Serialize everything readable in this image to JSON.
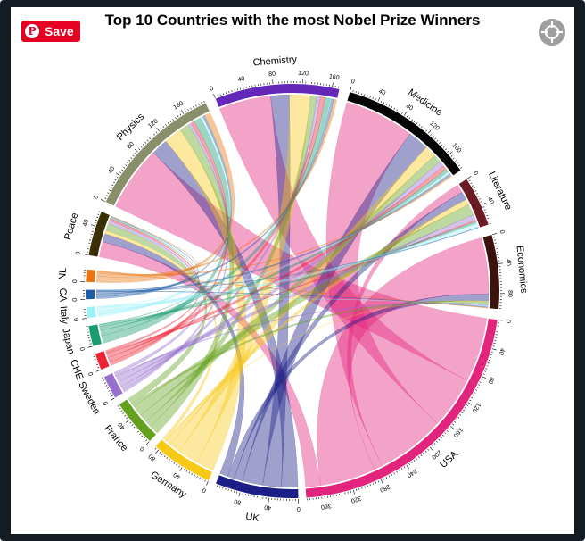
{
  "save_button": {
    "label": "Save"
  },
  "chart_data": {
    "type": "chord",
    "title": "Top 10 Countries with the most Nobel Prize Winners",
    "categories": [
      "Physics",
      "Chemistry",
      "Medicine",
      "Literature",
      "Economics",
      "Peace"
    ],
    "countries": [
      "USA",
      "UK",
      "Germany",
      "France",
      "Sweden",
      "CHE",
      "Japan",
      "Italy",
      "CA",
      "NL"
    ],
    "country_colors": {
      "USA": "#e3247c",
      "UK": "#1a1e85",
      "Germany": "#f7c917",
      "France": "#64a11e",
      "Sweden": "#9670cc",
      "CHE": "#ee2233",
      "Japan": "#1a9c72",
      "Italy": "#9ef0f7",
      "CA": "#1f5aa6",
      "NL": "#e87511"
    },
    "category_colors": {
      "Physics": "#8a8f6b",
      "Chemistry": "#6428b8",
      "Medicine": "#050505",
      "Literature": "#6b1c22",
      "Economics": "#3a140c",
      "Peace": "#3a3006"
    },
    "matrix": {
      "columns": [
        "Physics",
        "Chemistry",
        "Medicine",
        "Literature",
        "Economics",
        "Peace"
      ],
      "rows": [
        {
          "country": "USA",
          "values": [
            94,
            75,
            101,
            12,
            81,
            22
          ]
        },
        {
          "country": "UK",
          "values": [
            24,
            27,
            30,
            12,
            10,
            12
          ]
        },
        {
          "country": "Germany",
          "values": [
            26,
            30,
            16,
            8,
            1,
            5
          ]
        },
        {
          "country": "France",
          "values": [
            14,
            9,
            12,
            16,
            4,
            10
          ]
        },
        {
          "country": "Sweden",
          "values": [
            4,
            5,
            8,
            8,
            2,
            5
          ]
        },
        {
          "country": "CHE",
          "values": [
            5,
            7,
            6,
            2,
            0,
            3
          ]
        },
        {
          "country": "Japan",
          "values": [
            11,
            8,
            5,
            3,
            0,
            1
          ]
        },
        {
          "country": "Italy",
          "values": [
            3,
            1,
            3,
            6,
            1,
            1
          ]
        },
        {
          "country": "CA",
          "values": [
            3,
            4,
            3,
            1,
            1,
            1
          ]
        },
        {
          "country": "NL",
          "values": [
            9,
            4,
            2,
            0,
            1,
            1
          ]
        }
      ]
    }
  }
}
